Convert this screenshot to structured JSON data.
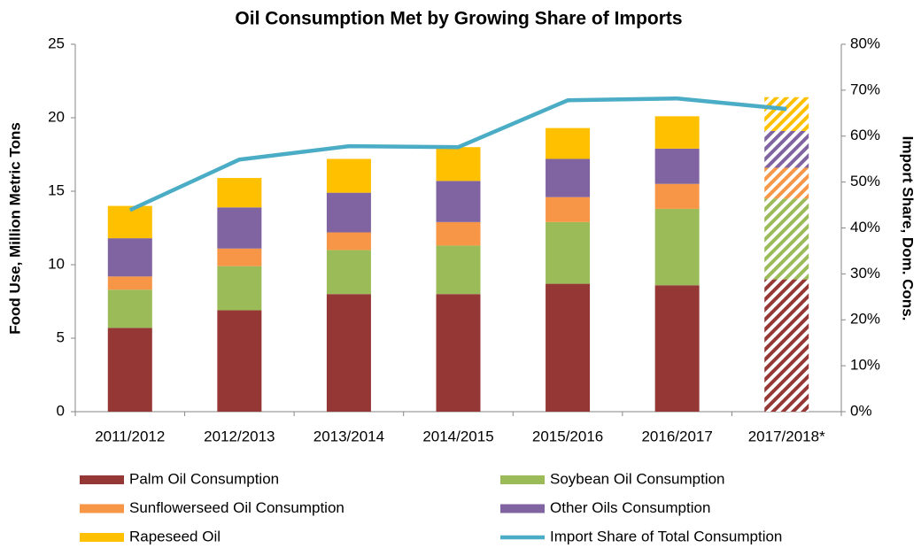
{
  "chart_data": {
    "type": "stacked_bar_line",
    "title": "Oil Consumption Met by Growing Share of Imports",
    "y_label": "Food Use, Million Metric Tons",
    "y2_label": "Import Share, Dom. Cons.",
    "categories": [
      "2011/2012",
      "2012/2013",
      "2013/2014",
      "2014/2015",
      "2015/2016",
      "2016/2017",
      "2017/2018*"
    ],
    "hatched_index": 6,
    "ylim": [
      0,
      25
    ],
    "yticks": [
      0,
      5,
      10,
      15,
      20,
      25
    ],
    "y2lim": [
      0,
      80
    ],
    "y2ticks": [
      {
        "value": 0,
        "label": "0%"
      },
      {
        "value": 10,
        "label": "10%"
      },
      {
        "value": 20,
        "label": "20%"
      },
      {
        "value": 30,
        "label": "30%"
      },
      {
        "value": 40,
        "label": "40%"
      },
      {
        "value": 50,
        "label": "50%"
      },
      {
        "value": 60,
        "label": "60%"
      },
      {
        "value": 70,
        "label": "70%"
      },
      {
        "value": 80,
        "label": "80%"
      }
    ],
    "series": [
      {
        "name": "Palm Oil Consumption",
        "color": "#953735",
        "values": [
          5.7,
          6.9,
          8.0,
          8.0,
          8.7,
          8.6,
          9.0
        ]
      },
      {
        "name": "Soybean Oil Consumption",
        "color": "#9bbb59",
        "values": [
          2.6,
          3.0,
          3.0,
          3.3,
          4.2,
          5.2,
          5.5
        ]
      },
      {
        "name": "Sunflowerseed Oil Consumption",
        "color": "#f79646",
        "values": [
          0.9,
          1.2,
          1.2,
          1.6,
          1.7,
          1.7,
          2.1
        ]
      },
      {
        "name": "Other Oils Consumption",
        "color": "#8064a2",
        "values": [
          2.6,
          2.8,
          2.7,
          2.8,
          2.6,
          2.4,
          2.5
        ]
      },
      {
        "name": "Rapeseed Oil",
        "color": "#ffc000",
        "values": [
          2.2,
          2.0,
          2.3,
          2.3,
          2.1,
          2.2,
          2.3
        ]
      },
      {
        "name": "Import Share of Total Consumption",
        "color": "#4bacc6",
        "axis": "y2",
        "type": "line",
        "values": [
          43.9,
          54.9,
          57.8,
          57.6,
          67.8,
          68.2,
          65.9
        ]
      }
    ]
  }
}
